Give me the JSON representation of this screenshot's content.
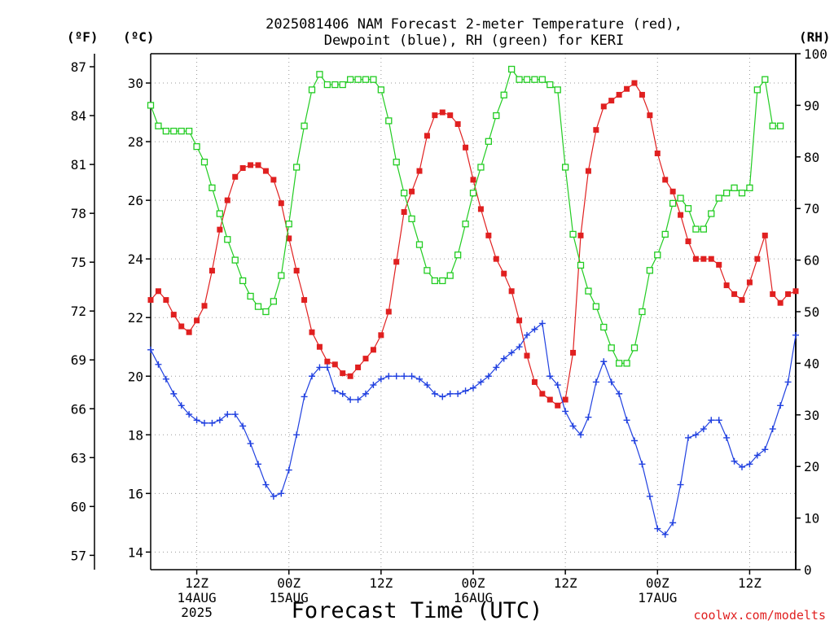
{
  "chart_data": {
    "type": "line",
    "title_line1": "2025081406 NAM Forecast 2-meter Temperature (red),",
    "title_line2": "Dewpoint (blue), RH (green) for KERI",
    "xlabel": "Forecast Time (UTC)",
    "credit": "coolwx.com/modelts",
    "axis_units": {
      "fahrenheit": "(ºF)",
      "celsius": "(ºC)",
      "rh": "(RH)"
    },
    "x_range_hours": [
      0,
      84
    ],
    "y_range_c": [
      13.4,
      31.0
    ],
    "y_range_rh": [
      0,
      100
    ],
    "grid": true,
    "left_f_ticks": [
      {
        "label": "57",
        "f": 57
      },
      {
        "label": "60",
        "f": 60
      },
      {
        "label": "63",
        "f": 63
      },
      {
        "label": "66",
        "f": 66
      },
      {
        "label": "69",
        "f": 69
      },
      {
        "label": "72",
        "f": 72
      },
      {
        "label": "75",
        "f": 75
      },
      {
        "label": "78",
        "f": 78
      },
      {
        "label": "81",
        "f": 81
      },
      {
        "label": "84",
        "f": 84
      },
      {
        "label": "87",
        "f": 87
      }
    ],
    "left_c_ticks": [
      {
        "label": "14",
        "c": 14
      },
      {
        "label": "16",
        "c": 16
      },
      {
        "label": "18",
        "c": 18
      },
      {
        "label": "20",
        "c": 20
      },
      {
        "label": "22",
        "c": 22
      },
      {
        "label": "24",
        "c": 24
      },
      {
        "label": "26",
        "c": 26
      },
      {
        "label": "28",
        "c": 28
      },
      {
        "label": "30",
        "c": 30
      }
    ],
    "right_rh_ticks": [
      {
        "label": "0",
        "rh": 0
      },
      {
        "label": "10",
        "rh": 10
      },
      {
        "label": "20",
        "rh": 20
      },
      {
        "label": "30",
        "rh": 30
      },
      {
        "label": "40",
        "rh": 40
      },
      {
        "label": "50",
        "rh": 50
      },
      {
        "label": "60",
        "rh": 60
      },
      {
        "label": "70",
        "rh": 70
      },
      {
        "label": "80",
        "rh": 80
      },
      {
        "label": "90",
        "rh": 90
      },
      {
        "label": "100",
        "rh": 100
      }
    ],
    "x_ticks": [
      {
        "h": 6,
        "labels": [
          "12Z",
          "14AUG",
          "2025"
        ]
      },
      {
        "h": 18,
        "labels": [
          "00Z",
          "15AUG"
        ]
      },
      {
        "h": 30,
        "labels": [
          "12Z"
        ]
      },
      {
        "h": 42,
        "labels": [
          "00Z",
          "16AUG"
        ]
      },
      {
        "h": 54,
        "labels": [
          "12Z"
        ]
      },
      {
        "h": 66,
        "labels": [
          "00Z",
          "17AUG"
        ]
      },
      {
        "h": 78,
        "labels": [
          "12Z"
        ]
      }
    ],
    "series": [
      {
        "name": "Temperature",
        "color": "#e02020",
        "marker": "filled-square",
        "axis": "celsius",
        "points": [
          [
            0,
            22.6
          ],
          [
            1,
            22.9
          ],
          [
            2,
            22.6
          ],
          [
            3,
            22.1
          ],
          [
            4,
            21.7
          ],
          [
            5,
            21.5
          ],
          [
            6,
            21.9
          ],
          [
            7,
            22.4
          ],
          [
            8,
            23.6
          ],
          [
            9,
            25.0
          ],
          [
            10,
            26.0
          ],
          [
            11,
            26.8
          ],
          [
            12,
            27.1
          ],
          [
            13,
            27.2
          ],
          [
            14,
            27.2
          ],
          [
            15,
            27.0
          ],
          [
            16,
            26.7
          ],
          [
            17,
            25.9
          ],
          [
            18,
            24.7
          ],
          [
            19,
            23.6
          ],
          [
            20,
            22.6
          ],
          [
            21,
            21.5
          ],
          [
            22,
            21.0
          ],
          [
            23,
            20.5
          ],
          [
            24,
            20.4
          ],
          [
            25,
            20.1
          ],
          [
            26,
            20.0
          ],
          [
            27,
            20.3
          ],
          [
            28,
            20.6
          ],
          [
            29,
            20.9
          ],
          [
            30,
            21.4
          ],
          [
            31,
            22.2
          ],
          [
            32,
            23.9
          ],
          [
            33,
            25.6
          ],
          [
            34,
            26.3
          ],
          [
            35,
            27.0
          ],
          [
            36,
            28.2
          ],
          [
            37,
            28.9
          ],
          [
            38,
            29.0
          ],
          [
            39,
            28.9
          ],
          [
            40,
            28.6
          ],
          [
            41,
            27.8
          ],
          [
            42,
            26.7
          ],
          [
            43,
            25.7
          ],
          [
            44,
            24.8
          ],
          [
            45,
            24.0
          ],
          [
            46,
            23.5
          ],
          [
            47,
            22.9
          ],
          [
            48,
            21.9
          ],
          [
            49,
            20.7
          ],
          [
            50,
            19.8
          ],
          [
            51,
            19.4
          ],
          [
            52,
            19.2
          ],
          [
            53,
            19.0
          ],
          [
            54,
            19.2
          ],
          [
            55,
            20.8
          ],
          [
            56,
            24.8
          ],
          [
            57,
            27.0
          ],
          [
            58,
            28.4
          ],
          [
            59,
            29.2
          ],
          [
            60,
            29.4
          ],
          [
            61,
            29.6
          ],
          [
            62,
            29.8
          ],
          [
            63,
            30.0
          ],
          [
            64,
            29.6
          ],
          [
            65,
            28.9
          ],
          [
            66,
            27.6
          ],
          [
            67,
            26.7
          ],
          [
            68,
            26.3
          ],
          [
            69,
            25.5
          ],
          [
            70,
            24.6
          ],
          [
            71,
            24.0
          ],
          [
            72,
            24.0
          ],
          [
            73,
            24.0
          ],
          [
            74,
            23.8
          ],
          [
            75,
            23.1
          ],
          [
            76,
            22.8
          ],
          [
            77,
            22.6
          ],
          [
            78,
            23.2
          ],
          [
            79,
            24.0
          ],
          [
            80,
            24.8
          ],
          [
            81,
            22.8
          ],
          [
            82,
            22.5
          ],
          [
            83,
            22.8
          ],
          [
            84,
            22.9
          ]
        ]
      },
      {
        "name": "Dewpoint",
        "color": "#2040e0",
        "marker": "plus",
        "axis": "celsius",
        "points": [
          [
            0,
            20.9
          ],
          [
            1,
            20.4
          ],
          [
            2,
            19.9
          ],
          [
            3,
            19.4
          ],
          [
            4,
            19.0
          ],
          [
            5,
            18.7
          ],
          [
            6,
            18.5
          ],
          [
            7,
            18.4
          ],
          [
            8,
            18.4
          ],
          [
            9,
            18.5
          ],
          [
            10,
            18.7
          ],
          [
            11,
            18.7
          ],
          [
            12,
            18.3
          ],
          [
            13,
            17.7
          ],
          [
            14,
            17.0
          ],
          [
            15,
            16.3
          ],
          [
            16,
            15.9
          ],
          [
            17,
            16.0
          ],
          [
            18,
            16.8
          ],
          [
            19,
            18.0
          ],
          [
            20,
            19.3
          ],
          [
            21,
            20.0
          ],
          [
            22,
            20.3
          ],
          [
            23,
            20.3
          ],
          [
            24,
            19.5
          ],
          [
            25,
            19.4
          ],
          [
            26,
            19.2
          ],
          [
            27,
            19.2
          ],
          [
            28,
            19.4
          ],
          [
            29,
            19.7
          ],
          [
            30,
            19.9
          ],
          [
            31,
            20.0
          ],
          [
            32,
            20.0
          ],
          [
            33,
            20.0
          ],
          [
            34,
            20.0
          ],
          [
            35,
            19.9
          ],
          [
            36,
            19.7
          ],
          [
            37,
            19.4
          ],
          [
            38,
            19.3
          ],
          [
            39,
            19.4
          ],
          [
            40,
            19.4
          ],
          [
            41,
            19.5
          ],
          [
            42,
            19.6
          ],
          [
            43,
            19.8
          ],
          [
            44,
            20.0
          ],
          [
            45,
            20.3
          ],
          [
            46,
            20.6
          ],
          [
            47,
            20.8
          ],
          [
            48,
            21.0
          ],
          [
            49,
            21.4
          ],
          [
            50,
            21.6
          ],
          [
            51,
            21.8
          ],
          [
            52,
            20.0
          ],
          [
            53,
            19.7
          ],
          [
            54,
            18.8
          ],
          [
            55,
            18.3
          ],
          [
            56,
            18.0
          ],
          [
            57,
            18.6
          ],
          [
            58,
            19.8
          ],
          [
            59,
            20.5
          ],
          [
            60,
            19.8
          ],
          [
            61,
            19.4
          ],
          [
            62,
            18.5
          ],
          [
            63,
            17.8
          ],
          [
            64,
            17.0
          ],
          [
            65,
            15.9
          ],
          [
            66,
            14.8
          ],
          [
            67,
            14.6
          ],
          [
            68,
            15.0
          ],
          [
            69,
            16.3
          ],
          [
            70,
            17.9
          ],
          [
            71,
            18.0
          ],
          [
            72,
            18.2
          ],
          [
            73,
            18.5
          ],
          [
            74,
            18.5
          ],
          [
            75,
            17.9
          ],
          [
            76,
            17.1
          ],
          [
            77,
            16.9
          ],
          [
            78,
            17.0
          ],
          [
            79,
            17.3
          ],
          [
            80,
            17.5
          ],
          [
            81,
            18.2
          ],
          [
            82,
            19.0
          ],
          [
            83,
            19.8
          ],
          [
            84,
            21.4
          ]
        ]
      },
      {
        "name": "RH",
        "color": "#22cc22",
        "marker": "open-square",
        "axis": "rh",
        "points": [
          [
            0,
            90
          ],
          [
            1,
            86
          ],
          [
            2,
            85
          ],
          [
            3,
            85
          ],
          [
            4,
            85
          ],
          [
            5,
            85
          ],
          [
            6,
            82
          ],
          [
            7,
            79
          ],
          [
            8,
            74
          ],
          [
            9,
            69
          ],
          [
            10,
            64
          ],
          [
            11,
            60
          ],
          [
            12,
            56
          ],
          [
            13,
            53
          ],
          [
            14,
            51
          ],
          [
            15,
            50
          ],
          [
            16,
            52
          ],
          [
            17,
            57
          ],
          [
            18,
            67
          ],
          [
            19,
            78
          ],
          [
            20,
            86
          ],
          [
            21,
            93
          ],
          [
            22,
            96
          ],
          [
            23,
            94
          ],
          [
            24,
            94
          ],
          [
            25,
            94
          ],
          [
            26,
            95
          ],
          [
            27,
            95
          ],
          [
            28,
            95
          ],
          [
            29,
            95
          ],
          [
            30,
            93
          ],
          [
            31,
            87
          ],
          [
            32,
            79
          ],
          [
            33,
            73
          ],
          [
            34,
            68
          ],
          [
            35,
            63
          ],
          [
            36,
            58
          ],
          [
            37,
            56
          ],
          [
            38,
            56
          ],
          [
            39,
            57
          ],
          [
            40,
            61
          ],
          [
            41,
            67
          ],
          [
            42,
            73
          ],
          [
            43,
            78
          ],
          [
            44,
            83
          ],
          [
            45,
            88
          ],
          [
            46,
            92
          ],
          [
            47,
            97
          ],
          [
            48,
            95
          ],
          [
            49,
            95
          ],
          [
            50,
            95
          ],
          [
            51,
            95
          ],
          [
            52,
            94
          ],
          [
            53,
            93
          ],
          [
            54,
            78
          ],
          [
            55,
            65
          ],
          [
            56,
            59
          ],
          [
            57,
            54
          ],
          [
            58,
            51
          ],
          [
            59,
            47
          ],
          [
            60,
            43
          ],
          [
            61,
            40
          ],
          [
            62,
            40
          ],
          [
            63,
            43
          ],
          [
            64,
            50
          ],
          [
            65,
            58
          ],
          [
            66,
            61
          ],
          [
            67,
            65
          ],
          [
            68,
            71
          ],
          [
            69,
            72
          ],
          [
            70,
            70
          ],
          [
            71,
            66
          ],
          [
            72,
            66
          ],
          [
            73,
            69
          ],
          [
            74,
            72
          ],
          [
            75,
            73
          ],
          [
            76,
            74
          ],
          [
            77,
            73
          ],
          [
            78,
            74
          ],
          [
            79,
            93
          ],
          [
            80,
            95
          ],
          [
            81,
            86
          ],
          [
            82,
            86
          ]
        ]
      }
    ]
  }
}
